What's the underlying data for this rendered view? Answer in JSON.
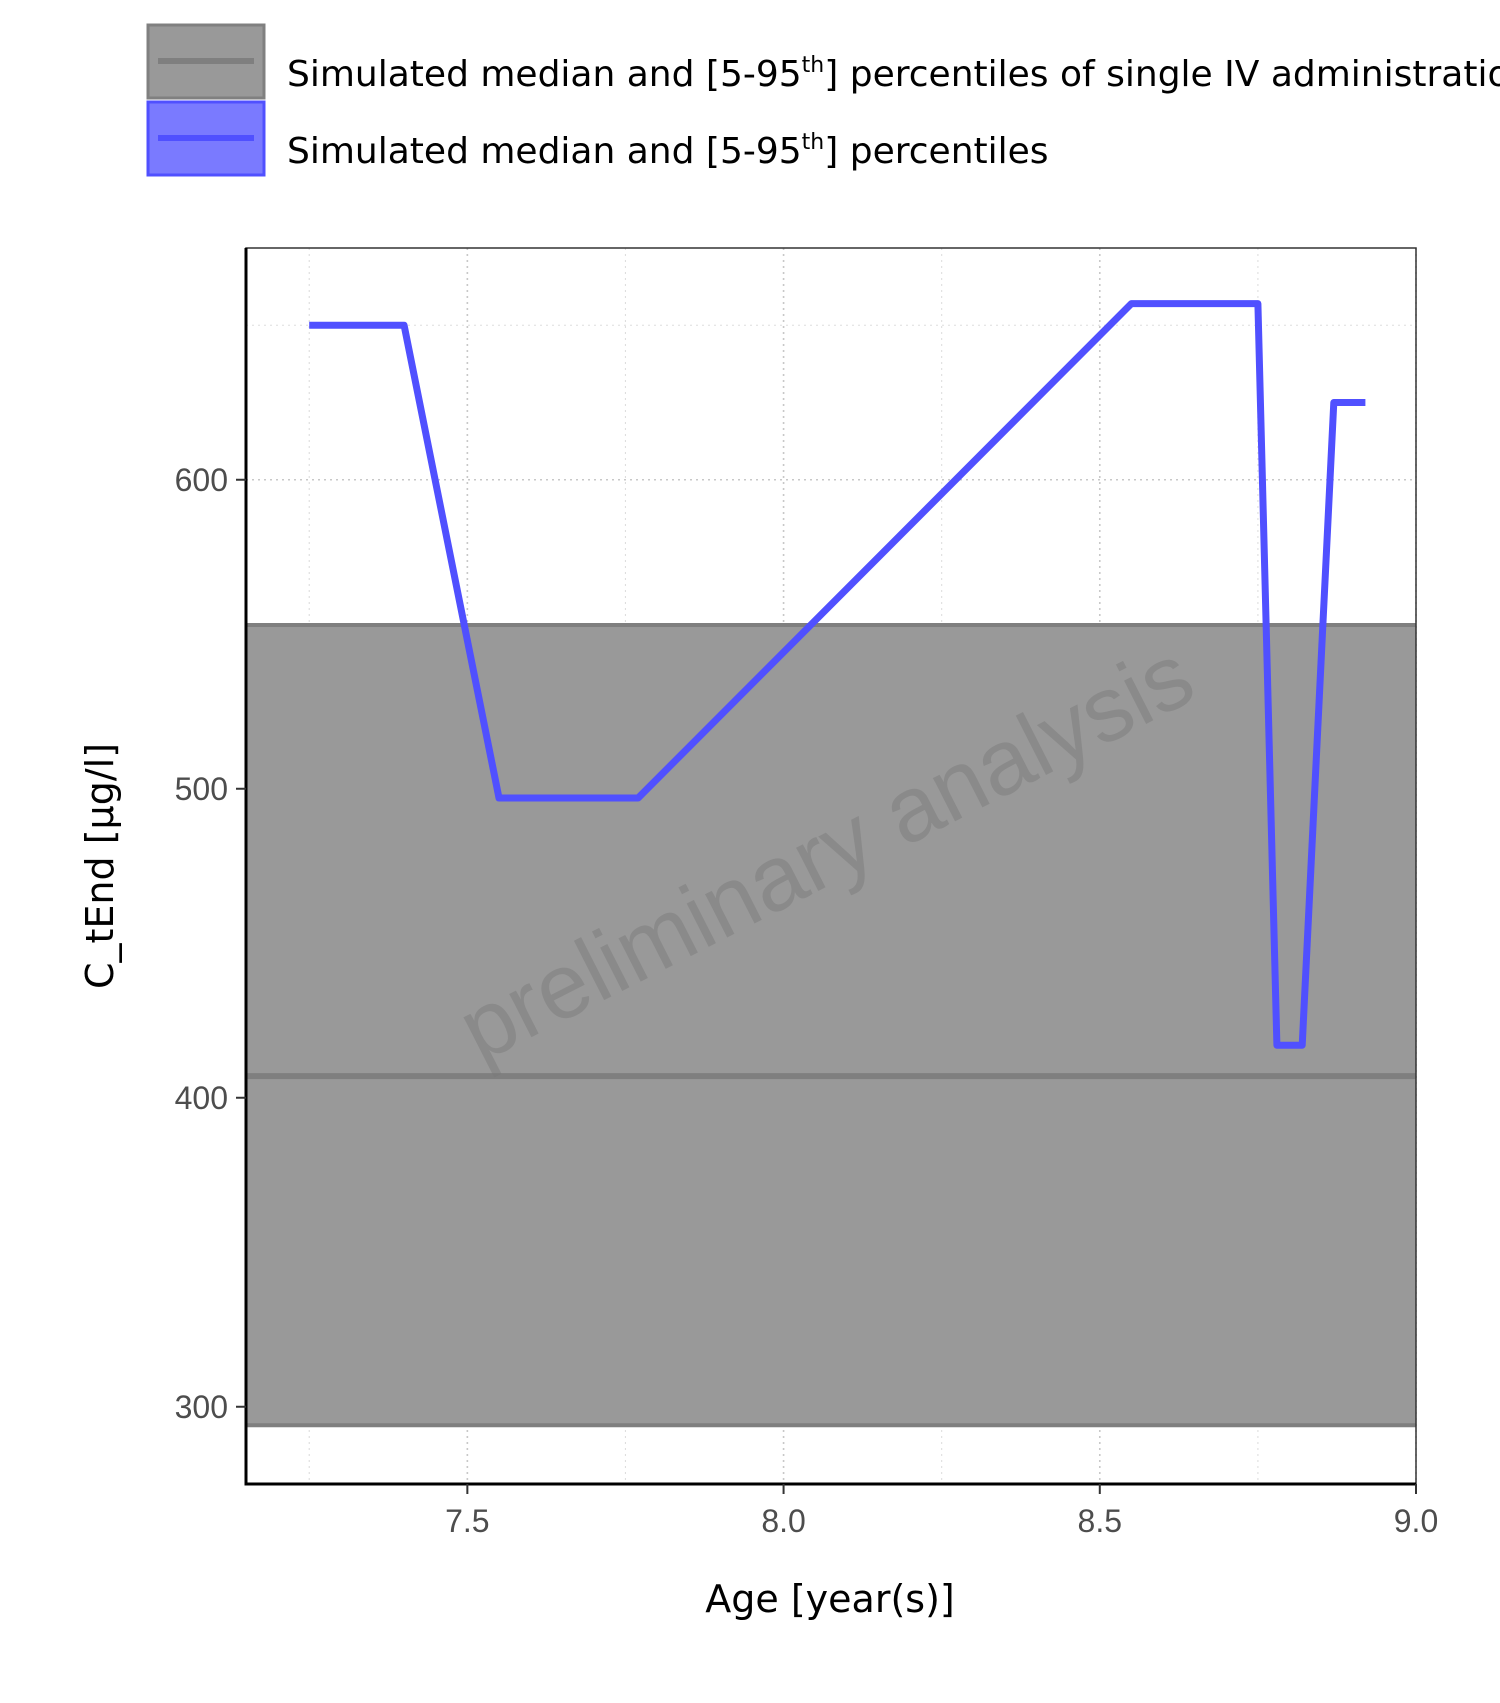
{
  "chart_data": {
    "type": "line",
    "xlabel": "Age [year(s)]",
    "ylabel": "C_tEnd [µg/l]",
    "xlim": [
      7.15,
      9.0
    ],
    "ylim": [
      275,
      675
    ],
    "x_ticks": [
      7.5,
      8.0,
      8.5,
      9.0
    ],
    "x_tick_labels": [
      "7.5",
      "8.0",
      "8.5",
      "9.0"
    ],
    "y_ticks": [
      300,
      400,
      500,
      600
    ],
    "y_tick_labels": [
      "300",
      "400",
      "500",
      "600"
    ],
    "grid": true,
    "legend_position": "top",
    "watermark": "preliminary analysis",
    "reference_band": {
      "name_parts": [
        "Simulated median and [5-95",
        "th",
        "] percentiles of single IV administration"
      ],
      "median": 407,
      "p5": 294,
      "p95": 553,
      "color": "#999999",
      "line_color": "#7f7f7f"
    },
    "series": [
      {
        "name_parts": [
          "Simulated median and [5-95",
          "th",
          "] percentiles"
        ],
        "color": "#5050ff",
        "points": [
          [
            7.25,
            650
          ],
          [
            7.4,
            650
          ],
          [
            7.55,
            497
          ],
          [
            7.77,
            497
          ],
          [
            8.55,
            657
          ],
          [
            8.75,
            657
          ],
          [
            8.78,
            417
          ],
          [
            8.82,
            417
          ],
          [
            8.87,
            625
          ],
          [
            8.92,
            625
          ]
        ]
      }
    ]
  }
}
